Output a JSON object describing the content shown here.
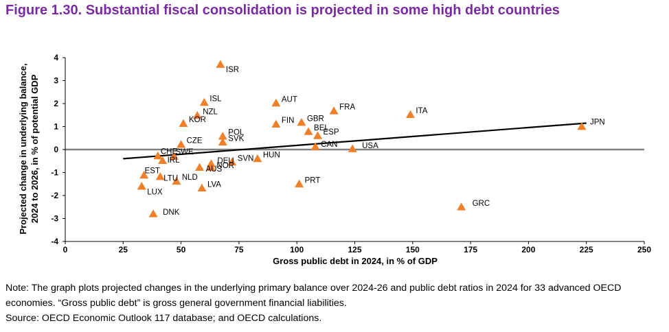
{
  "page": {
    "title": "Figure 1.30. Substantial fiscal consolidation is projected in some high debt countries",
    "title_color": "#7a2aa0",
    "note_line1": "Note: The graph plots projected changes in the underlying primary balance over 2024-26 and public debt ratios in 2024 for 33 advanced OECD",
    "note_line2": "economies. “Gross public debt” is gross general government financial liabilities.",
    "source": "Source: OECD Economic Outlook 117 database; and OECD calculations."
  },
  "chart_data": {
    "type": "scatter",
    "xlabel": "Gross public debt in 2024, in % of GDP",
    "ylabel_line1": "Projected change in underlying balance,",
    "ylabel_line2": "2024 to 2026, in % of potential GDP",
    "xlim": [
      0,
      250
    ],
    "ylim": [
      -4,
      4
    ],
    "xticks": [
      "0",
      "25",
      "50",
      "75",
      "100",
      "125",
      "150",
      "175",
      "200",
      "225",
      "250"
    ],
    "yticks": [
      "4",
      "3",
      "2",
      "1",
      "0",
      "-1",
      "-2",
      "-3",
      "-4"
    ],
    "marker_color": "#f07f2a",
    "trendline": {
      "x": [
        25,
        225
      ],
      "y": [
        -0.4,
        1.15
      ]
    },
    "points": [
      {
        "label": "ISR",
        "x": 67,
        "y": 3.7
      },
      {
        "label": "ISL",
        "x": 60,
        "y": 2.05
      },
      {
        "label": "AUT",
        "x": 91,
        "y": 2.02
      },
      {
        "label": "FRA",
        "x": 116,
        "y": 1.68
      },
      {
        "label": "ITA",
        "x": 149,
        "y": 1.52
      },
      {
        "label": "NZL",
        "x": 57,
        "y": 1.48
      },
      {
        "label": "KOR",
        "x": 51,
        "y": 1.13
      },
      {
        "label": "FIN",
        "x": 91,
        "y": 1.1
      },
      {
        "label": "GBR",
        "x": 102,
        "y": 1.18
      },
      {
        "label": "JPN",
        "x": 223,
        "y": 1.0
      },
      {
        "label": "BEL",
        "x": 105,
        "y": 0.78
      },
      {
        "label": "ESP",
        "x": 109,
        "y": 0.6
      },
      {
        "label": "POL",
        "x": 68,
        "y": 0.58
      },
      {
        "label": "SVK",
        "x": 68,
        "y": 0.32
      },
      {
        "label": "CZE",
        "x": 50,
        "y": 0.22
      },
      {
        "label": "CAN",
        "x": 108,
        "y": 0.12
      },
      {
        "label": "USA",
        "x": 124,
        "y": 0.03
      },
      {
        "label": "CHE",
        "x": 40,
        "y": -0.28
      },
      {
        "label": "SWE",
        "x": 47,
        "y": -0.3
      },
      {
        "label": "IRL",
        "x": 42,
        "y": -0.48
      },
      {
        "label": "HUN",
        "x": 83,
        "y": -0.4
      },
      {
        "label": "SVN",
        "x": 72,
        "y": -0.55
      },
      {
        "label": "DEU",
        "x": 63,
        "y": -0.62
      },
      {
        "label": "AUS",
        "x": 58,
        "y": -0.78
      },
      {
        "label": "NOR",
        "x": 63,
        "y": -0.78
      },
      {
        "label": "EST",
        "x": 34,
        "y": -1.12
      },
      {
        "label": "LTU",
        "x": 41,
        "y": -1.18
      },
      {
        "label": "NLD",
        "x": 48,
        "y": -1.38
      },
      {
        "label": "PRT",
        "x": 101,
        "y": -1.5
      },
      {
        "label": "LUX",
        "x": 33,
        "y": -1.6
      },
      {
        "label": "LVA",
        "x": 59,
        "y": -1.68
      },
      {
        "label": "GRC",
        "x": 171,
        "y": -2.5
      },
      {
        "label": "DNK",
        "x": 38,
        "y": -2.8
      }
    ]
  }
}
